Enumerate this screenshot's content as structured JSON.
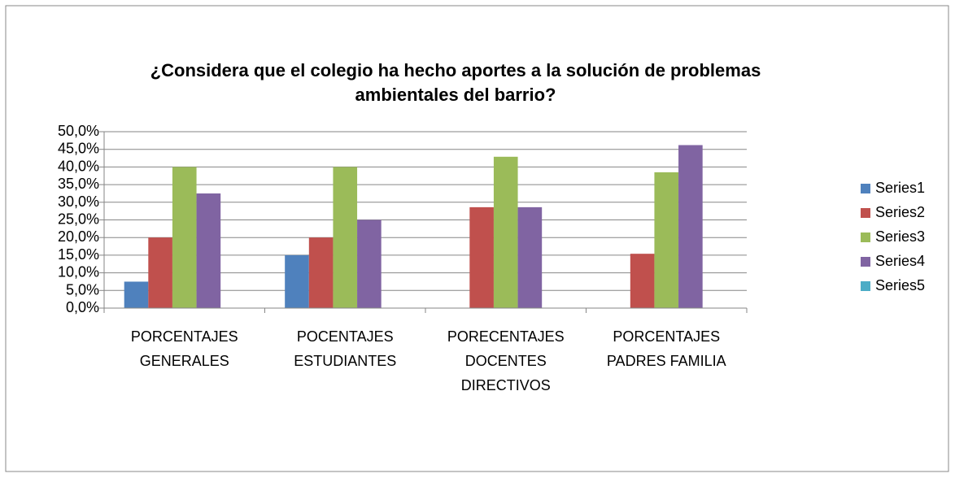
{
  "chart_data": {
    "type": "bar",
    "title": "¿Considera que el colegio ha hecho aportes a la solución de problemas\nambientales del barrio?",
    "categories": [
      "PORCENTAJES\nGENERALES",
      "POCENTAJES\nESTUDIANTES",
      "PORECENTAJES\nDOCENTES\nDIRECTIVOS",
      "PORCENTAJES\nPADRES FAMILIA"
    ],
    "series": [
      {
        "name": "Series1",
        "color": "#4f81bd",
        "values": [
          7.5,
          15,
          0,
          0
        ]
      },
      {
        "name": "Series2",
        "color": "#c0504d",
        "values": [
          20,
          20,
          28.6,
          15.4
        ]
      },
      {
        "name": "Series3",
        "color": "#9bbb59",
        "values": [
          40,
          40,
          42.9,
          38.5
        ]
      },
      {
        "name": "Series4",
        "color": "#8064a2",
        "values": [
          32.5,
          25,
          28.6,
          46.2
        ]
      },
      {
        "name": "Series5",
        "color": "#4bacc6",
        "values": [
          0,
          0,
          0,
          0
        ]
      }
    ],
    "ylim": [
      0,
      50
    ],
    "yticks": [
      {
        "value": 0,
        "label": "0,0%"
      },
      {
        "value": 5,
        "label": "5,0%"
      },
      {
        "value": 10,
        "label": "10,0%"
      },
      {
        "value": 15,
        "label": "15,0%"
      },
      {
        "value": 20,
        "label": "20,0%"
      },
      {
        "value": 25,
        "label": "25,0%"
      },
      {
        "value": 30,
        "label": "30,0%"
      },
      {
        "value": 35,
        "label": "35,0%"
      },
      {
        "value": 40,
        "label": "40,0%"
      },
      {
        "value": 45,
        "label": "45,0%"
      },
      {
        "value": 50,
        "label": "50,0%"
      }
    ],
    "grid": true,
    "legend": "right"
  }
}
